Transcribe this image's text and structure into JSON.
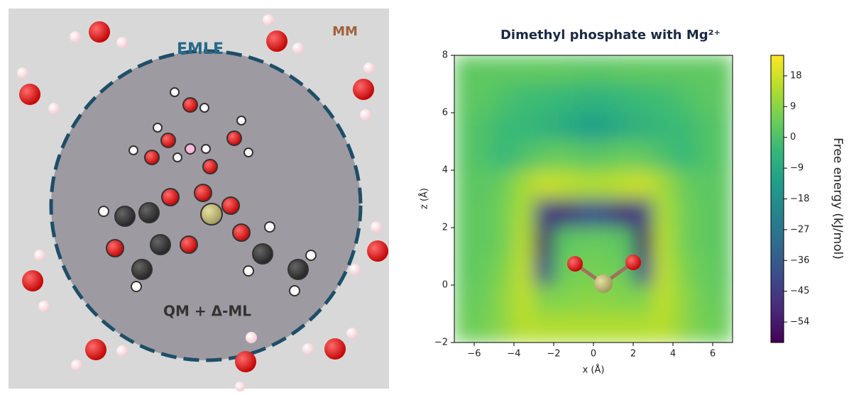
{
  "diagram": {
    "labels": {
      "mm": "MM",
      "emle": "EMLE",
      "qm": "QM + Δ-ML"
    }
  },
  "chart_data": {
    "type": "heatmap",
    "title": "Dimethyl phosphate with Mg²⁺",
    "x_label": "x (Å)",
    "y_label": "z (Å)",
    "colorbar_label": "Free energy (kJ/mol)",
    "colormap": "viridis",
    "clim": [
      -60,
      24
    ],
    "x": [
      -6.5,
      -5.5,
      -4.5,
      -3.5,
      -2.5,
      -1.5,
      -0.5,
      0.5,
      1.5,
      2.5,
      3.5,
      4.5,
      5.5,
      6.5
    ],
    "y": [
      7.5,
      6.5,
      5.5,
      4.5,
      3.5,
      2.5,
      1.5,
      0.5,
      -0.5,
      -1.5
    ],
    "values": [
      [
        3,
        3,
        3,
        3,
        3,
        3,
        2,
        2,
        3,
        3,
        3,
        3,
        3,
        3
      ],
      [
        3,
        2,
        0,
        -2,
        -3,
        -4,
        -6,
        -6,
        -4,
        -3,
        -2,
        0,
        2,
        3
      ],
      [
        2,
        0,
        -3,
        -4,
        -6,
        -8,
        -12,
        -12,
        -8,
        -6,
        -4,
        -3,
        0,
        2
      ],
      [
        2,
        0,
        -4,
        0,
        3,
        4,
        2,
        2,
        4,
        3,
        0,
        -4,
        0,
        2
      ],
      [
        3,
        2,
        5,
        12,
        17,
        16,
        14,
        14,
        16,
        17,
        12,
        5,
        2,
        3
      ],
      [
        3,
        3,
        6,
        14,
        -45,
        -50,
        -40,
        -40,
        -50,
        -45,
        14,
        6,
        3,
        3
      ],
      [
        3,
        3,
        6,
        15,
        -55,
        2,
        4,
        4,
        2,
        -55,
        15,
        6,
        3,
        3
      ],
      [
        3,
        4,
        8,
        16,
        -42,
        5,
        6,
        6,
        5,
        -42,
        16,
        8,
        4,
        3
      ],
      [
        4,
        5,
        10,
        16,
        8,
        8,
        9,
        9,
        8,
        8,
        16,
        10,
        5,
        4
      ],
      [
        5,
        6,
        10,
        15,
        14,
        14,
        14,
        14,
        14,
        14,
        15,
        10,
        6,
        5
      ]
    ],
    "xlim": [
      -7,
      7
    ],
    "ylim": [
      -2,
      8
    ],
    "xticks": [
      {
        "value": -6,
        "label": "−6"
      },
      {
        "value": -4,
        "label": "−4"
      },
      {
        "value": -2,
        "label": "−2"
      },
      0,
      2,
      4,
      6
    ],
    "yticks": [
      {
        "value": -2,
        "label": "−2"
      },
      0,
      2,
      4,
      6,
      8
    ],
    "cticks": [
      18,
      9,
      0,
      {
        "value": -9,
        "label": "−9"
      },
      {
        "value": -18,
        "label": "−18"
      },
      {
        "value": -27,
        "label": "−27"
      },
      {
        "value": -36,
        "label": "−36"
      },
      {
        "value": -45,
        "label": "−45"
      },
      {
        "value": -54,
        "label": "−54"
      }
    ]
  }
}
